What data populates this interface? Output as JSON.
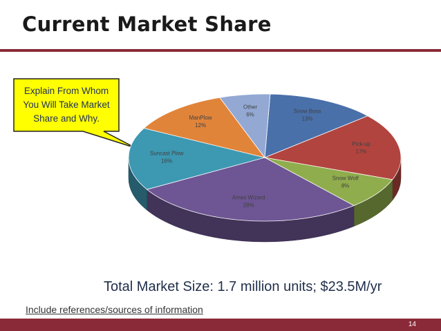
{
  "title": "Current Market Share",
  "callout": "Explain From Whom You Will Take Market Share and Why.",
  "chart_data": {
    "type": "pie",
    "categories": [
      "Snow Boss",
      "Pick-up",
      "Snow Wolf",
      "Ames Wizard",
      "Suncast Plow",
      "ManPlow",
      "Other"
    ],
    "values": [
      13,
      17,
      8,
      28,
      16,
      12,
      6
    ],
    "value_labels": [
      "13%",
      "17%",
      "8%",
      "28%",
      "16%",
      "12%",
      "6%"
    ],
    "colors": [
      "#4a70aa",
      "#b2443f",
      "#8fad4c",
      "#6e5594",
      "#3d98b2",
      "#e0843a",
      "#93a9d3"
    ]
  },
  "summary": "Total Market Size: 1.7 million units; $23.5M/yr",
  "references": "Include references/sources of information",
  "page_number": "14"
}
